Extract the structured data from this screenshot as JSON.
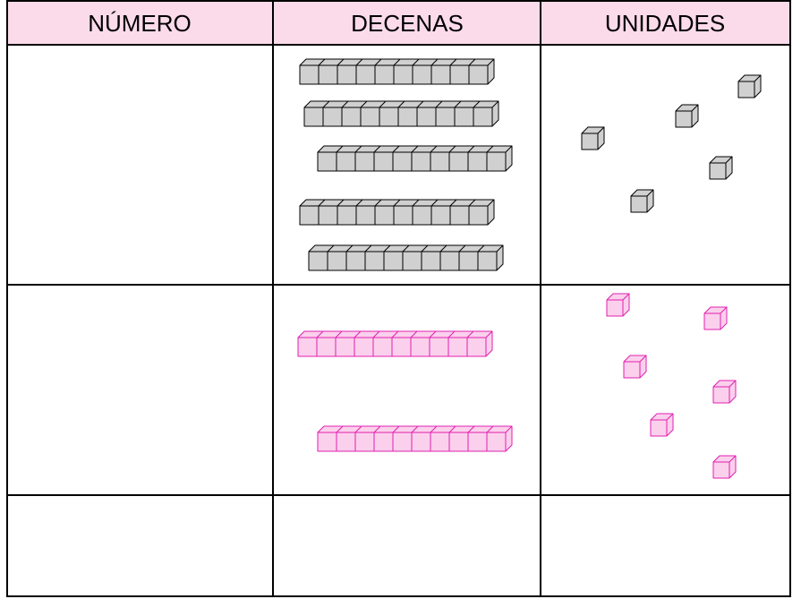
{
  "table": {
    "header": [
      "NÚMERO",
      "DECENAS",
      "UNIDADES"
    ]
  }
}
